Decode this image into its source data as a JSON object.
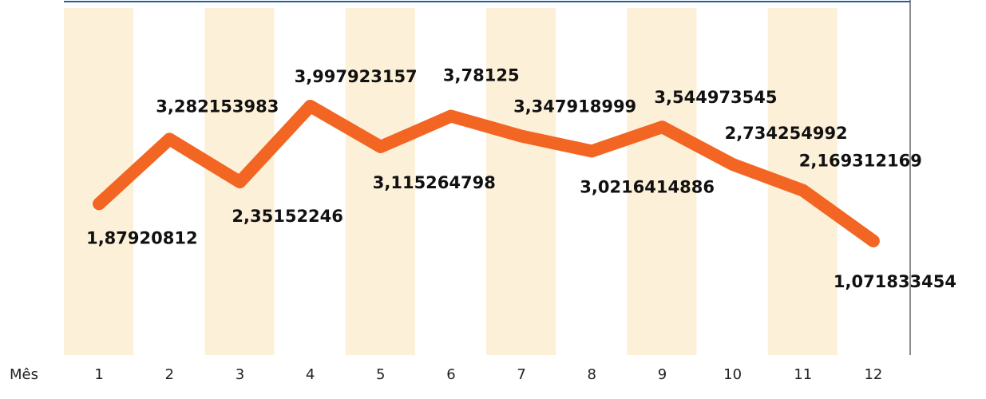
{
  "chart_data": {
    "type": "line",
    "x_label": "Mês",
    "categories": [
      "1",
      "2",
      "3",
      "4",
      "5",
      "6",
      "7",
      "8",
      "9",
      "10",
      "11",
      "12"
    ],
    "values": [
      1.87920812,
      3.282153983,
      2.35152246,
      3.997923157,
      3.115264798,
      3.78125,
      3.347918999,
      3.0216414886,
      3.544973545,
      2.734254992,
      2.169312169,
      1.071833454
    ],
    "value_labels": [
      "1,87920812",
      "3,282153983",
      "2,35152246",
      "3,997923157",
      "3,115264798",
      "3,78125",
      "3,347918999",
      "3,0216414886",
      "3,544973545",
      "2,734254992",
      "2,169312169",
      "1,071833454"
    ],
    "color": "#f26522",
    "band_color": "#fdf0d8"
  }
}
